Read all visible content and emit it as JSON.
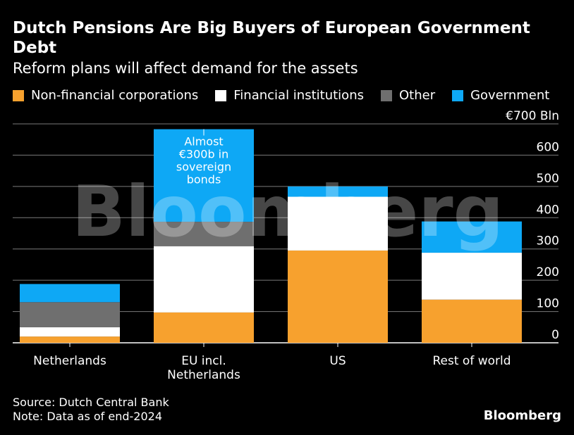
{
  "title": "Dutch Pensions Are Big Buyers of European Government Debt",
  "subtitle": "Reform plans will affect demand for the assets",
  "footer": {
    "source": "Source: Dutch Central Bank",
    "note": "Note: Data as of end-2024",
    "brand": "Bloomberg"
  },
  "watermark": "Bloomberg",
  "colors": {
    "Non-financial corporations": "#f7a12e",
    "Financial institutions": "#ffffff",
    "Other": "#6f6f6f",
    "Government": "#0ea8f5"
  },
  "chart_data": {
    "type": "bar",
    "stacked": true,
    "categories": [
      "Netherlands",
      "EU incl. Netherlands",
      "US",
      "Rest of world"
    ],
    "category_lines": [
      [
        "Netherlands"
      ],
      [
        "EU incl.",
        "Netherlands"
      ],
      [
        "US"
      ],
      [
        "Rest of world"
      ]
    ],
    "series": [
      {
        "name": "Non-financial corporations",
        "values": [
          20,
          97,
          295,
          138
        ]
      },
      {
        "name": "Financial institutions",
        "values": [
          30,
          212,
          172,
          150
        ]
      },
      {
        "name": "Other",
        "values": [
          80,
          78,
          0,
          0
        ]
      },
      {
        "name": "Government",
        "values": [
          58,
          296,
          33,
          100
        ]
      }
    ],
    "ylim": [
      0,
      700
    ],
    "yticks": [
      0,
      100,
      200,
      300,
      400,
      500,
      600,
      700
    ],
    "ytick_labels": [
      "0",
      "100",
      "200",
      "300",
      "400",
      "500",
      "600",
      "€700 Bln"
    ],
    "annotation": {
      "category": "EU incl. Netherlands",
      "series": "Government",
      "lines": [
        "Almost",
        "€300b in",
        "sovereign",
        "bonds"
      ]
    },
    "grid": true,
    "legend_position": "top"
  }
}
